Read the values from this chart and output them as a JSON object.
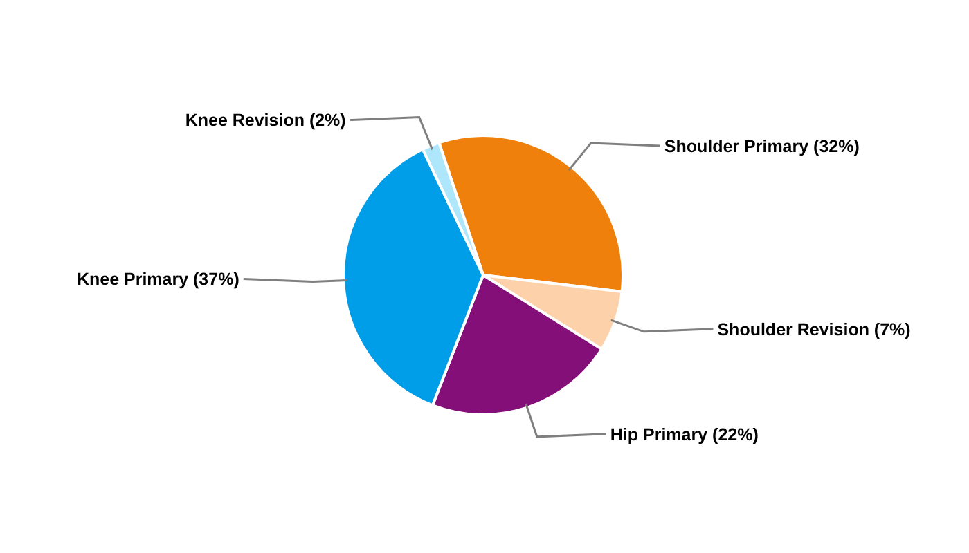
{
  "chart_data": {
    "type": "pie",
    "categories": [
      "Shoulder Primary (32%)",
      "Shoulder Revision (7%)",
      "Hip Primary (22%)",
      "Knee Primary (37%)",
      "Knee Revision (2%)"
    ],
    "values": [
      32,
      7,
      22,
      37,
      2
    ],
    "colors": [
      "#f0800c",
      "#fdd1aa",
      "#850f78",
      "#009ee8",
      "#aee6fb"
    ]
  }
}
